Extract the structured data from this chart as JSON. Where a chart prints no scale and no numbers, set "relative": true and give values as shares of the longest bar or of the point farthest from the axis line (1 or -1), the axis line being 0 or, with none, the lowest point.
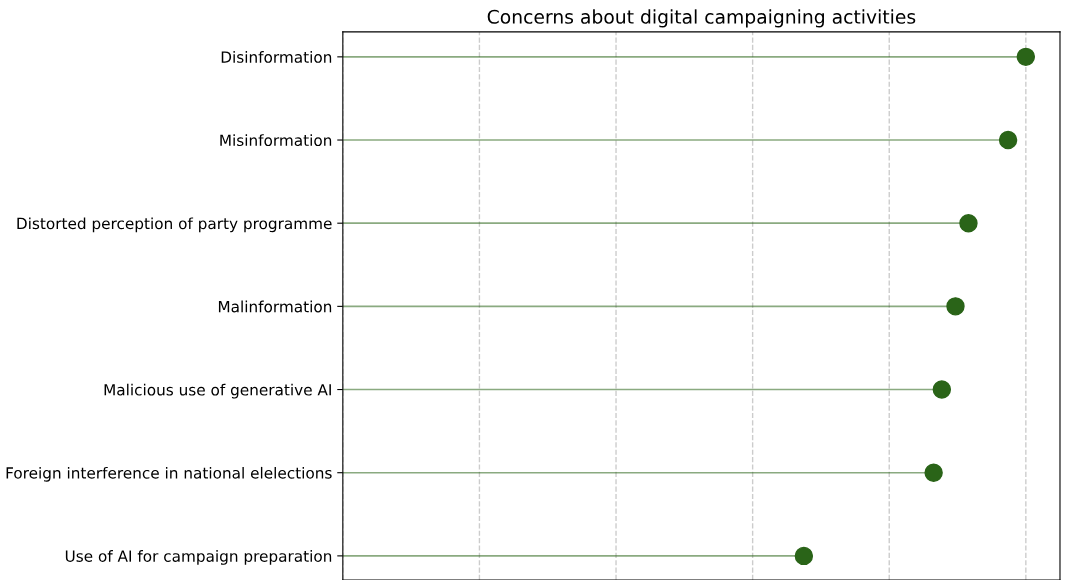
{
  "chart_data": {
    "type": "lollipop",
    "title": "Concerns about digital campaigning activities",
    "orientation": "horizontal",
    "relative": true,
    "grid": "x",
    "marker": "circle",
    "categories": [
      "Disinformation",
      "Misinformation",
      "Distorted perception of party programme",
      "Malinformation",
      "Malicious use of generative AI",
      "Foreign interference in national elelections",
      "Use of AI for campaign preparation"
    ],
    "series": [
      {
        "color": "#2a6418",
        "values": [
          1,
          0.974,
          0.916,
          0.897,
          0.877,
          0.865,
          0.675
        ]
      }
    ]
  }
}
